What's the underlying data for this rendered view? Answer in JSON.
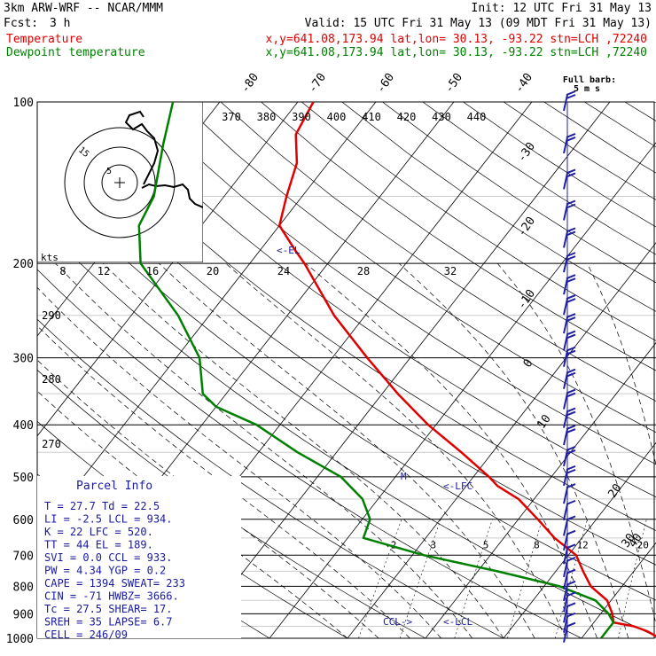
{
  "header": {
    "model": "3km ARW-WRF -- NCAR/MMM",
    "init": "Init: 12 UTC Fri 31 May 13",
    "fcst_label": "Fcst:",
    "fcst_value": "3 h",
    "valid": "Valid: 15 UTC Fri 31 May 13 (09 MDT Fri 31 May 13)"
  },
  "legend": {
    "temp_label": "Temperature",
    "temp_info": "x,y=641.08,173.94   lat,lon= 30.13, -93.22  stn=LCH ,72240",
    "dew_label": "Dewpoint temperature",
    "dew_info": "x,y=641.08,173.94   lat,lon= 30.13, -93.22  stn=LCH ,72240",
    "temp_color": "#e00000",
    "dew_color": "#008000"
  },
  "barb_key": {
    "line1": "Full barb:",
    "line2": "5 m s"
  },
  "parcel": {
    "title": "Parcel Info",
    "rows": [
      "T   =   27.7  Td =  22.5",
      "LI  =   -2.5  LCL =  934.",
      "K   =     22  LFC =  520.",
      "TT  =     44  EL  =  189.",
      "SVI =    0.0  CCL =  933.",
      "PW  =   4.34  YGP =   0.2",
      "CAPE =  1394  SWEAT=  233",
      "CIN  =   -71  HWBZ= 3666.",
      "Tc  =   27.5  SHEAR=  17.",
      "SREH =    35  LAPSE=  6.7",
      "CELL = 246/09"
    ]
  },
  "markers": {
    "el": "<-EL",
    "lfc": "<-LFC",
    "lcl": "<-LCL",
    "ccl": "CCL->",
    "m": "M"
  },
  "hodograph": {
    "units": "kts",
    "ring_labels": [
      "5",
      "15"
    ]
  },
  "labels": {
    "wind_speed_ticks": [
      "8",
      "12",
      "16",
      "20",
      "24",
      "28",
      "32"
    ],
    "theta_ticks": [
      "370",
      "380",
      "390",
      "400",
      "410",
      "420",
      "430",
      "440"
    ],
    "mixing_ticks": [
      "2",
      "3",
      "5",
      "8",
      "12",
      "20"
    ],
    "left_theta": [
      "290",
      "280",
      "270"
    ],
    "temp_ticks": [
      "-80",
      "-70",
      "-60",
      "-50",
      "-40",
      "-30",
      "-20",
      "-10",
      "0",
      "10",
      "20",
      "30",
      "40"
    ]
  },
  "chart_data": {
    "type": "line",
    "title": "",
    "xlabel": "",
    "ylabel": "",
    "y_scale": "log-pressure (skew-T)",
    "pressure_levels": [
      100,
      200,
      300,
      400,
      500,
      600,
      700,
      800,
      900,
      1000
    ],
    "ylim": [
      1000,
      100
    ],
    "series": [
      {
        "name": "Temperature",
        "color": "#e00000",
        "points_p_t": [
          [
            1000,
            30.0
          ],
          [
            970,
            27.7
          ],
          [
            950,
            25.5
          ],
          [
            934,
            22.5
          ],
          [
            900,
            21.5
          ],
          [
            850,
            19.5
          ],
          [
            800,
            16.0
          ],
          [
            750,
            13.5
          ],
          [
            700,
            11.0
          ],
          [
            650,
            6.5
          ],
          [
            600,
            2.5
          ],
          [
            550,
            -2.0
          ],
          [
            520,
            -6.0
          ],
          [
            500,
            -8.0
          ],
          [
            450,
            -14.0
          ],
          [
            400,
            -21.0
          ],
          [
            350,
            -28.0
          ],
          [
            300,
            -35.5
          ],
          [
            250,
            -44.0
          ],
          [
            200,
            -53.0
          ],
          [
            189,
            -55.5
          ],
          [
            170,
            -60.0
          ],
          [
            150,
            -62.0
          ],
          [
            130,
            -64.0
          ],
          [
            115,
            -67.0
          ],
          [
            100,
            -68.0
          ]
        ]
      },
      {
        "name": "Dewpoint temperature",
        "color": "#008000",
        "points_p_t": [
          [
            1000,
            22.5
          ],
          [
            970,
            22.5
          ],
          [
            934,
            22.5
          ],
          [
            900,
            21.0
          ],
          [
            850,
            18.0
          ],
          [
            800,
            12.0
          ],
          [
            750,
            2.5
          ],
          [
            700,
            -8.5
          ],
          [
            650,
            -18.0
          ],
          [
            600,
            -19.0
          ],
          [
            550,
            -22.0
          ],
          [
            500,
            -27.0
          ],
          [
            450,
            -35.0
          ],
          [
            400,
            -43.0
          ],
          [
            370,
            -50.0
          ],
          [
            350,
            -53.0
          ],
          [
            300,
            -57.0
          ],
          [
            250,
            -64.0
          ],
          [
            200,
            -74.0
          ],
          [
            170,
            -78.0
          ],
          [
            150,
            -79.0
          ],
          [
            120,
            -83.0
          ],
          [
            100,
            -86.0
          ]
        ]
      }
    ],
    "wind": {
      "type": "barbs",
      "units": "m s-1",
      "barb_key": "Full barb: 5 m s-1",
      "levels_hpa": [
        100,
        120,
        140,
        160,
        180,
        200,
        220,
        240,
        260,
        280,
        300,
        330,
        360,
        390,
        420,
        460,
        500,
        540,
        580,
        620,
        660,
        700,
        740,
        780,
        820,
        860,
        900,
        940,
        980
      ],
      "speeds_ms": [
        10,
        10,
        10,
        10,
        10,
        10,
        10,
        10,
        10,
        10,
        10,
        10,
        10,
        10,
        10,
        10,
        10,
        5,
        5,
        5,
        5,
        5,
        5,
        5,
        5,
        5,
        5,
        5,
        5
      ]
    },
    "grid": true
  }
}
